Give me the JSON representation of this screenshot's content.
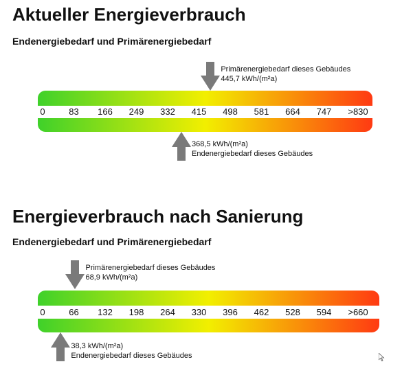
{
  "chart_data": [
    {
      "type": "bar",
      "title": "Aktueller Energieverbrauch",
      "subtitle": "Endenergiebedarf und Primärenergiebedarf",
      "scale": {
        "min": 0,
        "max": 830,
        "ticks": [
          "0",
          "83",
          "166",
          "249",
          "332",
          "415",
          "498",
          "581",
          "664",
          "747",
          ">830"
        ]
      },
      "gradient": [
        "#3fd12a",
        "#f2ef00",
        "#ff3a12"
      ],
      "primary": {
        "value": 445.7,
        "label": "Primärenergiebedarf dieses Gebäudes",
        "value_text": "445,7 kWh/(m²a)"
      },
      "final": {
        "value": 368.5,
        "label": "Endenergiebedarf dieses Gebäudes",
        "value_text": "368,5 kWh/(m²a)"
      }
    },
    {
      "type": "bar",
      "title": "Energieverbrauch nach Sanierung",
      "subtitle": "Endenergiebedarf und Primärenergiebedarf",
      "scale": {
        "min": 0,
        "max": 660,
        "ticks": [
          "0",
          "66",
          "132",
          "198",
          "264",
          "330",
          "396",
          "462",
          "528",
          "594",
          ">660"
        ]
      },
      "gradient": [
        "#3fd12a",
        "#f2ef00",
        "#ff3a12"
      ],
      "primary": {
        "value": 68.9,
        "label": "Primärenergiebedarf dieses Gebäudes",
        "value_text": "68,9 kWh/(m²a)"
      },
      "final": {
        "value": 38.3,
        "label": "Endenergiebedarf dieses Gebäudes",
        "value_text": "38,3 kWh/(m²a)"
      }
    }
  ],
  "colors": {
    "arrow": "#7a7a7a"
  },
  "icons": {
    "cursor": "mouse-pointer-icon"
  }
}
